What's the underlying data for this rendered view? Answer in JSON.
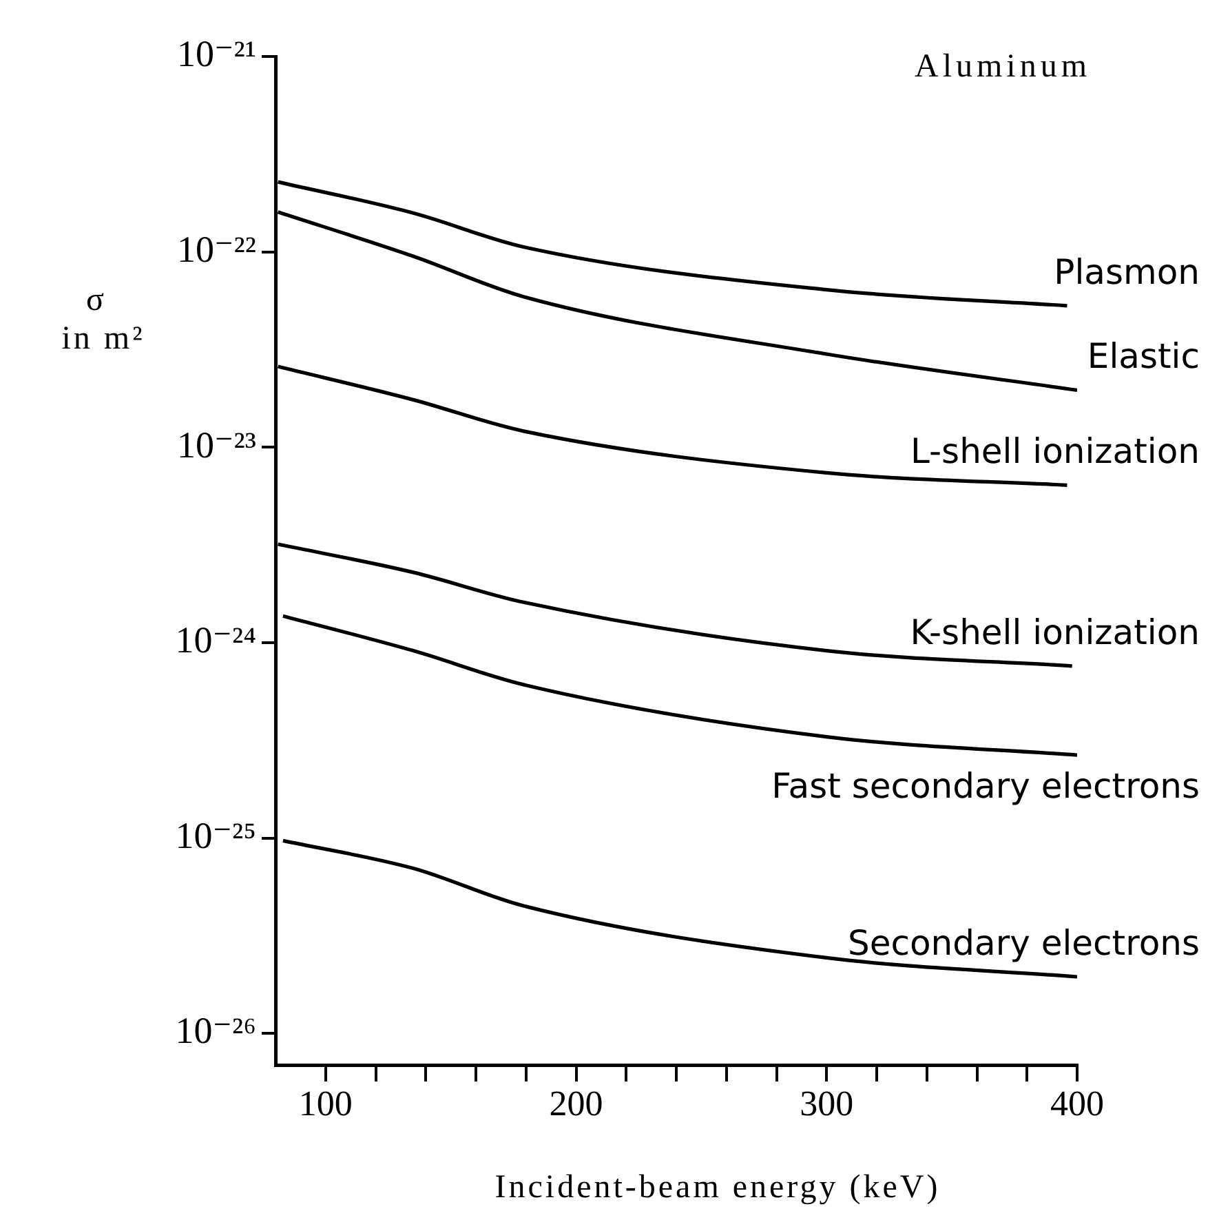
{
  "chart_data": {
    "type": "line",
    "title": "Aluminum",
    "xlabel": "Incident-beam energy (keV)",
    "ylabel": "σ in m²",
    "log": "y",
    "grid": false,
    "legend": false,
    "marker": "none",
    "line_style": "solid",
    "xlim": [
      80,
      400
    ],
    "ylim": [
      6.9e-27,
      1e-21
    ],
    "xticks": [
      100,
      {
        "value": 120,
        "label": null
      },
      {
        "value": 140,
        "label": null
      },
      {
        "value": 160,
        "label": null
      },
      {
        "value": 180,
        "label": null
      },
      200,
      {
        "value": 220,
        "label": null
      },
      {
        "value": 240,
        "label": null
      },
      {
        "value": 260,
        "label": null
      },
      {
        "value": 280,
        "label": null
      },
      300,
      {
        "value": 320,
        "label": null
      },
      {
        "value": 340,
        "label": null
      },
      {
        "value": 360,
        "label": null
      },
      {
        "value": 380,
        "label": null
      },
      400
    ],
    "yticks": [
      {
        "value": 1e-21,
        "label": "10⁻²¹"
      },
      {
        "value": 1e-22,
        "label": "10⁻²²"
      },
      {
        "value": 1e-23,
        "label": "10⁻²³"
      },
      {
        "value": 1e-24,
        "label": "10⁻²⁴"
      },
      {
        "value": 1e-25,
        "label": "10⁻²⁵"
      },
      {
        "value": 1e-26,
        "label": "10⁻²⁶"
      }
    ],
    "series": [
      {
        "name": "Plasmon",
        "color": "#000000",
        "x": [
          81,
          135,
          179,
          300,
          396
        ],
        "values": [
          2.28e-22,
          1.58e-22,
          1.06e-22,
          6.4e-23,
          5.3e-23
        ]
      },
      {
        "name": "Elastic",
        "color": "#000000",
        "x": [
          81,
          135,
          179,
          300,
          400
        ],
        "values": [
          1.6e-22,
          9.5e-23,
          5.9e-23,
          3e-23,
          1.96e-23
        ]
      },
      {
        "name": "L-shell ionization",
        "color": "#000000",
        "x": [
          81,
          135,
          179,
          300,
          396
        ],
        "values": [
          2.59e-23,
          1.75e-23,
          1.21e-23,
          7.4e-24,
          6.4e-24
        ]
      },
      {
        "name": "K-shell ionization",
        "color": "#000000",
        "x": [
          81,
          135,
          179,
          300,
          398
        ],
        "values": [
          3.19e-24,
          2.29e-24,
          1.61e-24,
          9.1e-25,
          7.6e-25
        ]
      },
      {
        "name": "Fast secondary electrons",
        "color": "#000000",
        "x": [
          83,
          135,
          179,
          300,
          400
        ],
        "values": [
          1.37e-24,
          9.1e-25,
          6.1e-25,
          3.3e-25,
          2.66e-25
        ]
      },
      {
        "name": "Secondary electrons",
        "color": "#000000",
        "x": [
          83,
          135,
          179,
          300,
          400
        ],
        "values": [
          9.7e-26,
          7e-26,
          4.5e-26,
          2.44e-26,
          1.95e-26
        ]
      }
    ]
  }
}
